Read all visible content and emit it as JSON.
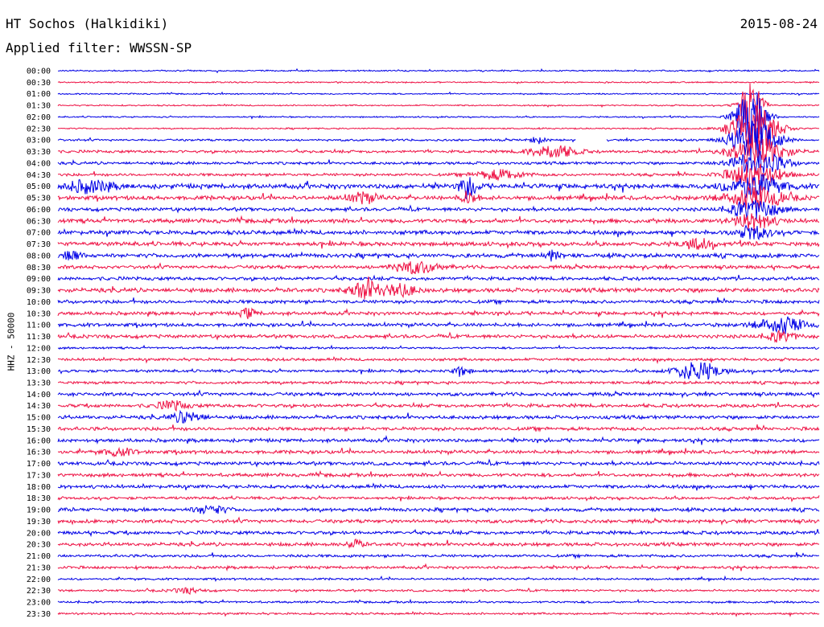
{
  "header": {
    "station": "HT Sochos (Halkidiki)",
    "date": "2015-08-24",
    "filter": "Applied filter: WWSSN-SP"
  },
  "chart_data": {
    "type": "line",
    "title": "HT Sochos (Halkidiki)",
    "subtitle": "Applied filter: WWSSN-SP",
    "ylabel": "HHZ - 50000",
    "row_labels": [
      "00:00",
      "00:30",
      "01:00",
      "01:30",
      "02:00",
      "02:30",
      "03:00",
      "03:30",
      "04:00",
      "04:30",
      "05:00",
      "05:30",
      "06:00",
      "06:30",
      "07:00",
      "07:30",
      "08:00",
      "08:30",
      "09:00",
      "09:30",
      "10:00",
      "10:30",
      "11:00",
      "11:30",
      "12:00",
      "12:30",
      "13:00",
      "13:30",
      "14:00",
      "14:30",
      "15:00",
      "15:30",
      "16:00",
      "16:30",
      "17:00",
      "17:30",
      "18:00",
      "18:30",
      "19:00",
      "19:30",
      "20:00",
      "20:30",
      "21:00",
      "21:30",
      "22:00",
      "22:30",
      "23:00",
      "23:30"
    ],
    "trace_colors": [
      "#0000e6",
      "#ee1144"
    ],
    "noise_amplitude": [
      1,
      1,
      1,
      1,
      1,
      1,
      1.5,
      2,
      2,
      2,
      3.5,
      3,
      2.5,
      3,
      3,
      3,
      3,
      2.5,
      2.5,
      3,
      2.5,
      2.5,
      2.5,
      2.5,
      1.5,
      2,
      2,
      2,
      2.5,
      2.5,
      2.5,
      2.5,
      2.5,
      2.5,
      2.5,
      2.5,
      2.5,
      2,
      2.5,
      2.5,
      2.5,
      2.5,
      2,
      2,
      1.5,
      1.5,
      1.5,
      1.5
    ],
    "events": [
      {
        "row": 3,
        "center": 0.91,
        "width": 0.015,
        "amplitude": 30
      },
      {
        "row": 4,
        "center": 0.91,
        "width": 0.02,
        "amplitude": 34
      },
      {
        "row": 5,
        "center": 0.915,
        "width": 0.03,
        "amplitude": 30
      },
      {
        "row": 6,
        "center": 0.915,
        "width": 0.03,
        "amplitude": 24
      },
      {
        "row": 7,
        "center": 0.92,
        "width": 0.035,
        "amplitude": 18
      },
      {
        "row": 8,
        "center": 0.92,
        "width": 0.035,
        "amplitude": 14
      },
      {
        "row": 9,
        "center": 0.915,
        "width": 0.035,
        "amplitude": 14
      },
      {
        "row": 10,
        "center": 0.915,
        "width": 0.035,
        "amplitude": 14
      },
      {
        "row": 11,
        "center": 0.915,
        "width": 0.035,
        "amplitude": 14
      },
      {
        "row": 12,
        "center": 0.915,
        "width": 0.03,
        "amplitude": 12
      },
      {
        "row": 13,
        "center": 0.915,
        "width": 0.025,
        "amplitude": 10
      },
      {
        "row": 14,
        "center": 0.915,
        "width": 0.02,
        "amplitude": 8
      },
      {
        "row": 6,
        "center": 0.63,
        "width": 0.01,
        "amplitude": 4
      },
      {
        "row": 7,
        "center": 0.65,
        "width": 0.03,
        "amplitude": 8
      },
      {
        "row": 9,
        "center": 0.58,
        "width": 0.03,
        "amplitude": 6
      },
      {
        "row": 10,
        "center": 0.54,
        "width": 0.01,
        "amplitude": 16
      },
      {
        "row": 10,
        "center": 0.04,
        "width": 0.03,
        "amplitude": 7
      },
      {
        "row": 11,
        "center": 0.54,
        "width": 0.01,
        "amplitude": 8
      },
      {
        "row": 11,
        "center": 0.4,
        "width": 0.02,
        "amplitude": 6
      },
      {
        "row": 15,
        "center": 0.84,
        "width": 0.02,
        "amplitude": 6
      },
      {
        "row": 16,
        "center": 0.02,
        "width": 0.01,
        "amplitude": 7
      },
      {
        "row": 16,
        "center": 0.65,
        "width": 0.01,
        "amplitude": 6
      },
      {
        "row": 17,
        "center": 0.47,
        "width": 0.03,
        "amplitude": 7
      },
      {
        "row": 19,
        "center": 0.405,
        "width": 0.02,
        "amplitude": 11
      },
      {
        "row": 19,
        "center": 0.45,
        "width": 0.02,
        "amplitude": 7
      },
      {
        "row": 21,
        "center": 0.25,
        "width": 0.01,
        "amplitude": 6
      },
      {
        "row": 22,
        "center": 0.95,
        "width": 0.03,
        "amplitude": 10
      },
      {
        "row": 23,
        "center": 0.95,
        "width": 0.02,
        "amplitude": 6
      },
      {
        "row": 26,
        "center": 0.84,
        "width": 0.03,
        "amplitude": 11
      },
      {
        "row": 26,
        "center": 0.53,
        "width": 0.01,
        "amplitude": 6
      },
      {
        "row": 29,
        "center": 0.15,
        "width": 0.02,
        "amplitude": 5
      },
      {
        "row": 30,
        "center": 0.17,
        "width": 0.02,
        "amplitude": 7
      },
      {
        "row": 33,
        "center": 0.08,
        "width": 0.02,
        "amplitude": 4
      },
      {
        "row": 38,
        "center": 0.2,
        "width": 0.02,
        "amplitude": 5
      },
      {
        "row": 41,
        "center": 0.39,
        "width": 0.01,
        "amplitude": 6
      },
      {
        "row": 45,
        "center": 0.17,
        "width": 0.02,
        "amplitude": 3
      }
    ],
    "gaps": [
      {
        "row": 6,
        "from": 0.68,
        "to": 0.72
      }
    ]
  }
}
